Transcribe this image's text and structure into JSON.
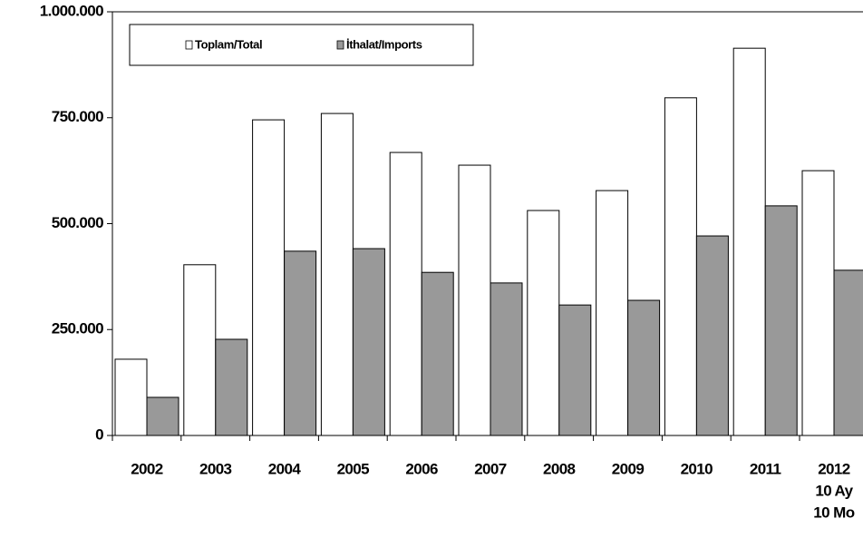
{
  "chart_data": {
    "type": "bar",
    "categories": [
      "2002",
      "2003",
      "2004",
      "2005",
      "2006",
      "2007",
      "2008",
      "2009",
      "2010",
      "2011",
      "2012"
    ],
    "x_label_notes": [
      "10 Ay",
      "10 Mo"
    ],
    "series": [
      {
        "name": "Toplam/Total",
        "color": "#ffffff",
        "values": [
          180000,
          403000,
          745000,
          760000,
          668000,
          638000,
          531000,
          578000,
          797000,
          914000,
          625000
        ]
      },
      {
        "name": "İthalat/Imports",
        "color": "#999999",
        "values": [
          90000,
          227000,
          435000,
          441000,
          385000,
          360000,
          308000,
          319000,
          471000,
          542000,
          390000
        ]
      }
    ],
    "ylim": [
      0,
      1000000
    ],
    "yticks": [
      0,
      {
        "value": 250000,
        "label": "250.000"
      },
      {
        "value": 500000,
        "label": "500.000"
      },
      {
        "value": 750000,
        "label": "750.000"
      },
      {
        "value": 1000000,
        "label": "1.000.000"
      }
    ],
    "legend": "top-left"
  }
}
